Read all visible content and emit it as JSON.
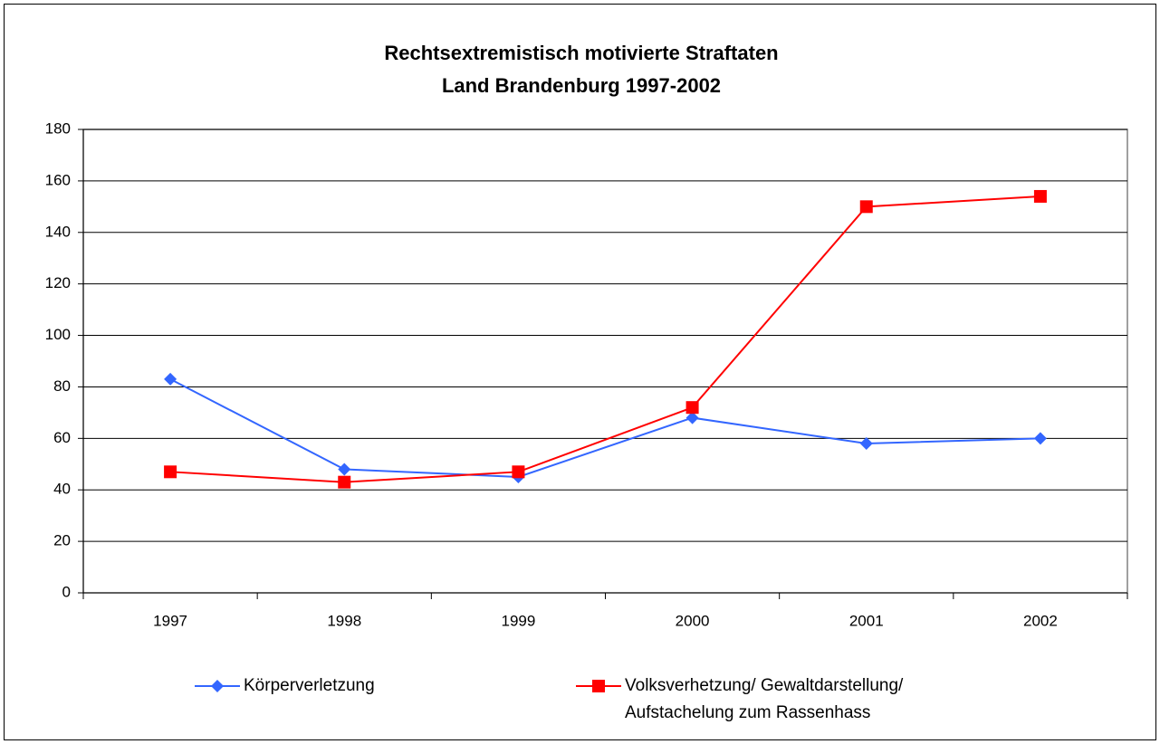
{
  "chart_data": {
    "type": "line",
    "title": [
      "Rechtsextremistisch motivierte Straftaten",
      "Land Brandenburg 1997-2002"
    ],
    "categories": [
      "1997",
      "1998",
      "1999",
      "2000",
      "2001",
      "2002"
    ],
    "series": [
      {
        "name": "Körperverletzung",
        "color": "#3366ff",
        "marker": "diamond",
        "values": [
          83,
          48,
          45,
          68,
          58,
          60
        ]
      },
      {
        "name": "Volksverhetzung/ Gewaltdarstellung/ Aufstachelung zum Rassenhass",
        "color": "#ff0000",
        "marker": "square",
        "values": [
          47,
          43,
          47,
          72,
          150,
          154
        ]
      }
    ],
    "ylim": [
      0,
      180
    ],
    "yticks": [
      0,
      20,
      40,
      60,
      80,
      100,
      120,
      140,
      160,
      180
    ],
    "grid": true,
    "legend": "bottom"
  }
}
